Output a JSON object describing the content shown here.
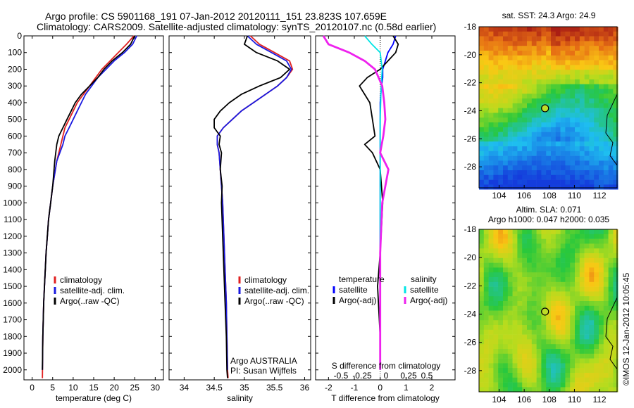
{
  "header": {
    "line1": "Argo profile: CS 5901168_191 07-Jan-2012 20120111_151 23.823S 107.659E",
    "line2": "Climatology: CARS2009. Satellite-adjusted climatology: synTS_20120107.nc (0.58d earlier)"
  },
  "colors": {
    "climatology": "#e02020",
    "satellite": "#1a1ae0",
    "argo": "#000000",
    "temp_diff_sat": "#0000ff",
    "sal_diff_sat": "#00e5e5",
    "sal_diff_argo": "#ee22ee"
  },
  "chart_data": [
    {
      "type": "line",
      "xlabel": "temperature (deg C)",
      "ylabel": "",
      "xlim": [
        -2,
        32
      ],
      "ylim": [
        2060,
        0
      ],
      "xticks": [
        0,
        5,
        10,
        15,
        20,
        25,
        30
      ],
      "yticks": [
        0,
        100,
        200,
        300,
        400,
        500,
        600,
        700,
        800,
        900,
        1000,
        1100,
        1200,
        1300,
        1400,
        1500,
        1600,
        1700,
        1800,
        1900,
        2000
      ],
      "legend_position": "lower-right",
      "series": [
        {
          "name": "climatology",
          "color_key": "climatology",
          "x": [
            24.8,
            23.0,
            21.0,
            19.0,
            17.0,
            15.5,
            14.0,
            12.5,
            11.0,
            10.0,
            9.0,
            8.0,
            7.5,
            7.0,
            6.0,
            5.0,
            4.5,
            4.0,
            3.7,
            3.4,
            3.2,
            3.0,
            2.8,
            2.6,
            2.5
          ],
          "y": [
            0,
            50,
            100,
            150,
            200,
            250,
            300,
            350,
            400,
            450,
            500,
            550,
            600,
            650,
            750,
            900,
            1000,
            1100,
            1200,
            1300,
            1400,
            1500,
            1600,
            1800,
            2050
          ]
        },
        {
          "name": "satellite-adj. clim.",
          "color_key": "satellite",
          "x": [
            25.5,
            24.5,
            22.5,
            20.0,
            18.0,
            16.0,
            14.5,
            13.0,
            12.0,
            11.0,
            10.0,
            9.0,
            8.0,
            7.5,
            6.0,
            5.0,
            4.5,
            4.0,
            3.7,
            3.4,
            3.2,
            3.0,
            2.8,
            2.6,
            2.5
          ],
          "y": [
            0,
            50,
            100,
            150,
            200,
            250,
            300,
            350,
            400,
            450,
            500,
            550,
            600,
            650,
            750,
            900,
            1000,
            1100,
            1200,
            1300,
            1400,
            1500,
            1600,
            1800,
            2000
          ]
        },
        {
          "name": "Argo(..raw -QC)",
          "color_key": "argo",
          "x": [
            25.0,
            24.0,
            22.0,
            19.5,
            17.5,
            16.0,
            14.0,
            12.0,
            10.5,
            9.5,
            8.5,
            7.5,
            6.5,
            6.0,
            5.5,
            5.0,
            4.5,
            4.0,
            3.7,
            3.4,
            3.2,
            3.0,
            2.8,
            2.6,
            2.5
          ],
          "y": [
            0,
            50,
            100,
            150,
            200,
            250,
            300,
            350,
            400,
            450,
            500,
            550,
            600,
            650,
            750,
            900,
            1000,
            1100,
            1200,
            1300,
            1400,
            1500,
            1600,
            1800,
            2000
          ]
        }
      ]
    },
    {
      "type": "line",
      "xlabel": "salinity",
      "ylabel": "",
      "xlim": [
        33.75,
        36.1
      ],
      "ylim": [
        2060,
        0
      ],
      "xticks": [
        34,
        34.5,
        35,
        35.5,
        36
      ],
      "legend_position": "lower-right",
      "annotations": [
        "Argo AUSTRALIA",
        "PI: Susan Wijffels"
      ],
      "series": [
        {
          "name": "climatology",
          "color_key": "climatology",
          "x": [
            35.1,
            35.25,
            35.5,
            35.75,
            35.8,
            35.7,
            35.55,
            35.35,
            35.15,
            34.95,
            34.8,
            34.65,
            34.55,
            34.55,
            34.58,
            34.6,
            34.62,
            34.64,
            34.66,
            34.68,
            34.7,
            34.71,
            34.72,
            34.73
          ],
          "y": [
            0,
            50,
            100,
            150,
            200,
            250,
            300,
            350,
            400,
            450,
            500,
            550,
            600,
            650,
            700,
            800,
            900,
            1000,
            1200,
            1400,
            1600,
            1800,
            2000,
            2050
          ]
        },
        {
          "name": "satellite-adj. clim.",
          "color_key": "satellite",
          "x": [
            35.05,
            35.2,
            35.45,
            35.7,
            35.78,
            35.7,
            35.55,
            35.35,
            35.15,
            34.95,
            34.8,
            34.65,
            34.55,
            34.55,
            34.58,
            34.6,
            34.62,
            34.64,
            34.66,
            34.68,
            34.7,
            34.71,
            34.72
          ],
          "y": [
            0,
            50,
            100,
            150,
            200,
            250,
            300,
            350,
            400,
            450,
            500,
            550,
            600,
            650,
            700,
            800,
            900,
            1000,
            1200,
            1400,
            1600,
            1800,
            2000
          ]
        },
        {
          "name": "Argo(..raw -QC)",
          "color_key": "argo",
          "x": [
            35.05,
            35.0,
            35.2,
            35.55,
            35.75,
            35.6,
            35.25,
            34.95,
            34.75,
            34.6,
            34.5,
            34.5,
            34.6,
            34.58,
            34.62,
            34.6,
            34.63,
            34.62,
            34.64,
            34.66,
            34.68,
            34.7,
            34.71,
            34.72
          ],
          "y": [
            0,
            50,
            100,
            150,
            200,
            250,
            300,
            350,
            400,
            450,
            500,
            550,
            600,
            650,
            700,
            800,
            900,
            1000,
            1200,
            1400,
            1600,
            1800,
            2000,
            2050
          ]
        }
      ]
    },
    {
      "type": "line",
      "xlabel": "T difference from climatology",
      "title_bottom": "S difference from climatology",
      "xlim": [
        -2.5,
        2.9
      ],
      "ylim": [
        2060,
        0
      ],
      "xticks": [
        -2,
        -1,
        0,
        1,
        2
      ],
      "secondary_xticks": [
        "-0.5",
        "-0.25",
        "0",
        "0.25",
        "0.5"
      ],
      "legend_titles": [
        "temperature",
        "salinity"
      ],
      "series": [
        {
          "name": "satellite",
          "group": "temperature",
          "color_key": "temp_diff_sat",
          "x": [
            0.6,
            0.5,
            0.3,
            0.2,
            0.1,
            0.1,
            0.05,
            0.0,
            0.0,
            0.0,
            0.0,
            0.0,
            0.0,
            0.0,
            0.0,
            0.0
          ],
          "y": [
            0,
            50,
            100,
            150,
            200,
            250,
            300,
            400,
            500,
            600,
            700,
            800,
            1000,
            1400,
            1800,
            2000
          ]
        },
        {
          "name": "Argo(-adj)",
          "group": "temperature",
          "color_key": "argo",
          "x": [
            0.5,
            0.7,
            0.6,
            0.3,
            0.0,
            -0.5,
            -0.8,
            -0.4,
            -0.3,
            -0.2,
            -0.6,
            -0.3,
            0.0,
            0.1,
            0.0,
            -0.1,
            0.0,
            0.0
          ],
          "y": [
            0,
            50,
            100,
            150,
            200,
            250,
            300,
            400,
            500,
            600,
            650,
            700,
            800,
            1000,
            1300,
            1500,
            1800,
            2000
          ]
        },
        {
          "name": "satellite",
          "group": "salinity",
          "color_key": "sal_diff_sat",
          "x": [
            -0.15,
            -0.08,
            0.0,
            0.02,
            0.01,
            0.0,
            0.0,
            0.0,
            0.0,
            0.0,
            0.0,
            0.0
          ],
          "y": [
            0,
            50,
            100,
            200,
            300,
            500,
            700,
            900,
            1100,
            1400,
            1700,
            2000
          ]
        },
        {
          "name": "Argo(-adj)",
          "group": "salinity",
          "color_key": "sal_diff_argo",
          "x": [
            -0.55,
            -0.5,
            -0.3,
            -0.15,
            -0.05,
            0.02,
            0.04,
            0.05,
            0.03,
            0.0,
            0.08,
            0.05,
            0.02,
            0.0,
            0.0,
            0.0
          ],
          "y": [
            0,
            50,
            100,
            150,
            200,
            300,
            400,
            500,
            600,
            700,
            800,
            900,
            1000,
            1300,
            1600,
            2000
          ]
        }
      ]
    },
    {
      "type": "heatmap",
      "title": "sat. SST: 24.3 Argo: 24.9",
      "xlim": [
        102.4,
        113.4
      ],
      "ylim": [
        -29.5,
        -18
      ],
      "xticks": [
        104,
        106,
        108,
        110,
        112
      ],
      "yticks": [
        -18,
        -20,
        -22,
        -24,
        -26,
        -28
      ],
      "marker": {
        "lon": 107.659,
        "lat": -23.823
      }
    },
    {
      "type": "heatmap",
      "title": "Altim. SLA: 0.071",
      "subtitle": "Argo h1000: 0.047 h2000: 0.035",
      "xlim": [
        102.4,
        113.4
      ],
      "ylim": [
        -29.5,
        -18
      ],
      "xticks": [
        104,
        106,
        108,
        110,
        112
      ],
      "yticks": [
        -18,
        -20,
        -22,
        -24,
        -26,
        -28
      ],
      "marker": {
        "lon": 107.659,
        "lat": -23.823
      }
    }
  ],
  "side_label": "©IMOS 12-Jan-2012 10:05:45"
}
